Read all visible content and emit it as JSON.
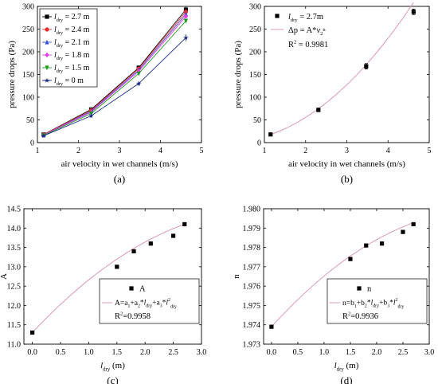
{
  "chart_data": [
    {
      "panel_label": "(a)",
      "type": "line",
      "xlabel": "air velocity in wet channels (m/s)",
      "ylabel": "pressure drops (Pa)",
      "xlim": [
        1,
        5
      ],
      "ylim": [
        0,
        300
      ],
      "xticks": [
        1,
        2,
        3,
        4,
        5
      ],
      "yticks": [
        0,
        50,
        100,
        150,
        200,
        250,
        300
      ],
      "x": [
        1.15,
        2.31,
        3.47,
        4.62
      ],
      "legend_position": "top-left",
      "series": [
        {
          "name_var": "l",
          "name_sub": "dry",
          "name_value": " = 2.7 m",
          "color": "#000000",
          "marker": "square",
          "values": [
            18,
            73,
            165,
            293
          ]
        },
        {
          "name_var": "l",
          "name_sub": "dry",
          "name_value": " = 2.4 m",
          "color": "#e8302f",
          "marker": "circle",
          "values": [
            18,
            71,
            163,
            288
          ]
        },
        {
          "name_var": "l",
          "name_sub": "dry",
          "name_value": " = 2.1 m",
          "color": "#3b4fd6",
          "marker": "triangle",
          "values": [
            17,
            69,
            160,
            283
          ]
        },
        {
          "name_var": "l",
          "name_sub": "dry",
          "name_value": " = 1.8 m",
          "color": "#e040e0",
          "marker": "diamond",
          "values": [
            17,
            67,
            157,
            278
          ]
        },
        {
          "name_var": "l",
          "name_sub": "dry",
          "name_value": " = 1.5 m",
          "color": "#1a9a1a",
          "marker": "triangle-down",
          "values": [
            16,
            64,
            152,
            268
          ]
        },
        {
          "name_var": "l",
          "name_sub": "dry",
          "name_value": " = 0 m",
          "color": "#1a2a8a",
          "marker": "star",
          "values": [
            15,
            59,
            130,
            231
          ]
        }
      ],
      "error_bars": [
        3,
        4,
        5,
        8
      ]
    },
    {
      "panel_label": "(b)",
      "type": "scatter",
      "xlabel": "air velocity in wet channels (m/s)",
      "ylabel": "pressure drops (Pa)",
      "xlim": [
        1,
        5
      ],
      "ylim": [
        0,
        300
      ],
      "xticks": [
        1,
        2,
        3,
        4,
        5
      ],
      "yticks": [
        0,
        50,
        100,
        150,
        200,
        250,
        300
      ],
      "legend_position": "top-left",
      "series": [
        {
          "name_var": "l",
          "name_sub": "dry",
          "name_value": " = 2.7m",
          "type": "scatter",
          "color": "#000000",
          "x": [
            1.15,
            2.31,
            3.47,
            4.62
          ],
          "values": [
            18,
            72,
            168,
            288
          ],
          "errors": [
            2,
            4,
            6,
            6
          ]
        },
        {
          "name_prefix": "Δp = A*",
          "name_var": "v",
          "name_sub": "2",
          "name_sup": "n",
          "type": "fit",
          "color": "#d98ea8",
          "x_range": [
            1.15,
            4.62
          ],
          "fit": {
            "A": 13.4,
            "n": 2.05
          }
        }
      ],
      "annotation": {
        "r2_label": "R",
        "r2_sup": "2",
        "r2_value": " = 0.9981"
      }
    },
    {
      "panel_label": "(c)",
      "type": "scatter",
      "xlabel_var": "l",
      "xlabel_sub": "dry",
      "xlabel_unit": " (m)",
      "ylabel": "A",
      "xlim": [
        -0.15,
        3.0
      ],
      "ylim": [
        11.0,
        14.5
      ],
      "xticks": [
        "0.0",
        "0.5",
        "1.0",
        "1.5",
        "2.0",
        "2.5",
        "3.0"
      ],
      "yticks": [
        "11.0",
        "11.5",
        "12.0",
        "12.5",
        "13.0",
        "13.5",
        "14.0",
        "14.5"
      ],
      "legend_position": "bottom-right",
      "series": [
        {
          "name": "A",
          "type": "scatter",
          "color": "#000000",
          "x": [
            0.0,
            1.5,
            1.8,
            2.1,
            2.5,
            2.7
          ],
          "values": [
            11.3,
            13.0,
            13.4,
            13.6,
            13.8,
            14.1
          ]
        },
        {
          "type": "fit",
          "color": "#d98ea8",
          "x_range": [
            0.0,
            2.7
          ],
          "coefficients": [
            11.3,
            1.55,
            -0.19
          ]
        }
      ],
      "legend_fit_text": {
        "lhs": "A=a",
        "parts": [
          {
            "sub": "1"
          },
          {
            "text": "+a"
          },
          {
            "sub": "2"
          },
          {
            "text": "*"
          },
          {
            "var": "l"
          },
          {
            "sub": "dry"
          },
          {
            "text": "+a"
          },
          {
            "sub": "3"
          },
          {
            "text": "*"
          },
          {
            "var": "l"
          },
          {
            "sup": "2"
          },
          {
            "sub": "dry"
          }
        ]
      },
      "annotation": {
        "r2_label": "R",
        "r2_sup": "2",
        "r2_value": "=0.9958"
      }
    },
    {
      "panel_label": "(d)",
      "type": "scatter",
      "xlabel_var": "l",
      "xlabel_sub": "dry",
      "xlabel_unit": " (m)",
      "ylabel": "n",
      "xlim": [
        -0.15,
        3.0
      ],
      "ylim": [
        1.973,
        1.98
      ],
      "xticks": [
        "0.0",
        "0.5",
        "1.0",
        "1.5",
        "2.0",
        "2.5",
        "3.0"
      ],
      "yticks": [
        "1.973",
        "1.974",
        "1.975",
        "1.976",
        "1.977",
        "1.978",
        "1.979",
        "1.980"
      ],
      "legend_position": "bottom-right",
      "series": [
        {
          "name": "n",
          "type": "scatter",
          "color": "#000000",
          "x": [
            0.0,
            1.5,
            1.8,
            2.1,
            2.5,
            2.7
          ],
          "values": [
            1.9739,
            1.9774,
            1.9781,
            1.9782,
            1.9788,
            1.9792
          ]
        },
        {
          "type": "fit",
          "color": "#d98ea8",
          "x_range": [
            0.0,
            2.7
          ],
          "coefficients": [
            1.9739,
            0.00299,
            -0.00037
          ]
        }
      ],
      "legend_fit_text": {
        "lhs": "n=b",
        "parts": [
          {
            "sub": "1"
          },
          {
            "text": "+b"
          },
          {
            "sub": "2"
          },
          {
            "text": "*"
          },
          {
            "var": "l"
          },
          {
            "sub": "dry"
          },
          {
            "text": "+b"
          },
          {
            "sub": "3"
          },
          {
            "text": "*"
          },
          {
            "var": "l"
          },
          {
            "sup": "2"
          },
          {
            "sub": "dry"
          }
        ]
      },
      "annotation": {
        "r2_label": "R",
        "r2_sup": "2",
        "r2_value": "=0.9936"
      }
    }
  ]
}
